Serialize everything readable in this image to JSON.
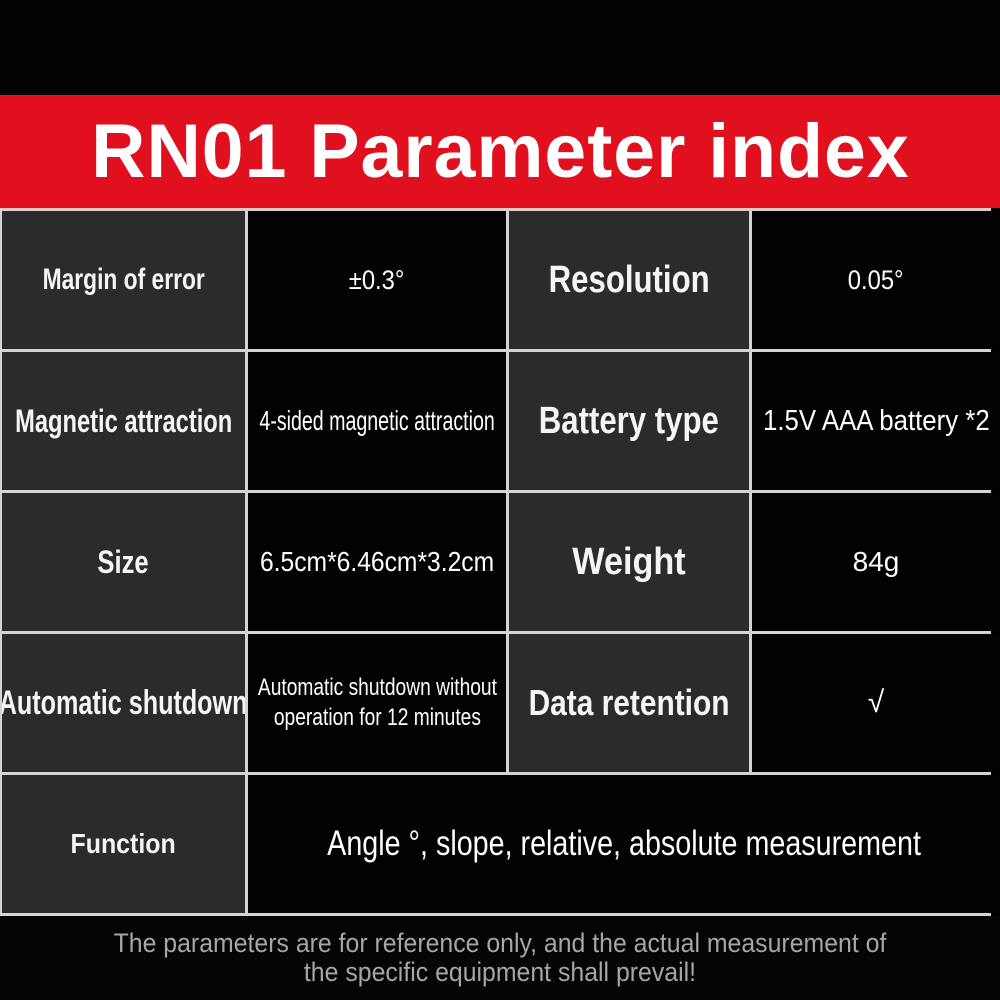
{
  "banner": {
    "title": "RN01 Parameter index"
  },
  "table": {
    "rows": [
      {
        "label_left": "Margin of error",
        "value_left": "±0.3°",
        "label_right": "Resolution",
        "value_right": "0.05°"
      },
      {
        "label_left": "Magnetic attraction",
        "value_left": "4-sided magnetic attraction",
        "label_right": "Battery type",
        "value_right": "1.5V AAA battery *2"
      },
      {
        "label_left": "Size",
        "value_left": "6.5cm*6.46cm*3.2cm",
        "label_right": "Weight",
        "value_right": "84g"
      },
      {
        "label_left": "Automatic shutdown",
        "value_left_lines": [
          "Automatic shutdown without",
          "operation for 12 minutes"
        ],
        "label_right": "Data retention",
        "value_right": "√"
      }
    ],
    "function_row": {
      "label": "Function",
      "value": "Angle °, slope, relative, absolute measurement"
    }
  },
  "footer": {
    "lines": [
      "The parameters are for reference only, and the actual measurement of",
      "the specific equipment shall prevail!"
    ]
  },
  "colors": {
    "banner_red": "#e1101e",
    "banner_text": "#ffffff",
    "label_cell_bg": "#2b2b2b",
    "value_cell_bg": "#020202",
    "grid_line": "#d4d4d4",
    "table_top_line": "#e9c8c8",
    "footer_text": "#a6a6a6",
    "background": "#000000"
  }
}
